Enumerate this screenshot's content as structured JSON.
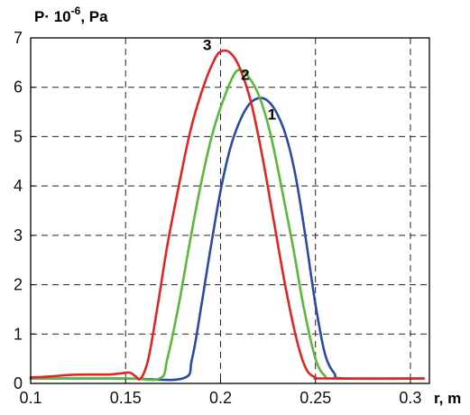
{
  "chart_data": {
    "type": "line",
    "ylabel_main": "P· 10",
    "ylabel_exp": "-6",
    "ylabel_unit": ", Pa",
    "xlabel": "r, m",
    "xlim": [
      0.1,
      0.31
    ],
    "ylim": [
      0,
      7
    ],
    "xticks": [
      "0.1",
      "0.15",
      "0.2",
      "0.25",
      "0.3"
    ],
    "xtick_values": [
      0.1,
      0.15,
      0.2,
      0.25,
      0.3
    ],
    "yticks": [
      "0",
      "1",
      "2",
      "3",
      "4",
      "5",
      "6",
      "7"
    ],
    "ytick_values": [
      0,
      1,
      2,
      3,
      4,
      5,
      6,
      7
    ],
    "grid": true,
    "series": [
      {
        "name": "1",
        "color": "#2b4aa6",
        "points": [
          [
            0.1,
            0.1
          ],
          [
            0.15,
            0.1
          ],
          [
            0.18,
            0.1
          ],
          [
            0.185,
            0.5
          ],
          [
            0.19,
            1.6
          ],
          [
            0.195,
            2.8
          ],
          [
            0.2,
            3.9
          ],
          [
            0.205,
            4.75
          ],
          [
            0.21,
            5.3
          ],
          [
            0.215,
            5.65
          ],
          [
            0.22,
            5.78
          ],
          [
            0.225,
            5.72
          ],
          [
            0.23,
            5.45
          ],
          [
            0.235,
            4.95
          ],
          [
            0.24,
            4.1
          ],
          [
            0.245,
            2.9
          ],
          [
            0.25,
            1.6
          ],
          [
            0.255,
            0.6
          ],
          [
            0.26,
            0.2
          ],
          [
            0.265,
            0.1
          ],
          [
            0.307,
            0.1
          ]
        ]
      },
      {
        "name": "2",
        "color": "#5ab936",
        "points": [
          [
            0.1,
            0.1
          ],
          [
            0.15,
            0.1
          ],
          [
            0.168,
            0.1
          ],
          [
            0.172,
            0.5
          ],
          [
            0.178,
            1.6
          ],
          [
            0.184,
            2.9
          ],
          [
            0.19,
            4.1
          ],
          [
            0.196,
            5.1
          ],
          [
            0.202,
            5.8
          ],
          [
            0.207,
            6.25
          ],
          [
            0.21,
            6.35
          ],
          [
            0.214,
            6.25
          ],
          [
            0.22,
            5.85
          ],
          [
            0.226,
            5.1
          ],
          [
            0.232,
            4.0
          ],
          [
            0.238,
            2.8
          ],
          [
            0.244,
            1.5
          ],
          [
            0.25,
            0.5
          ],
          [
            0.255,
            0.15
          ],
          [
            0.26,
            0.1
          ],
          [
            0.307,
            0.1
          ]
        ]
      },
      {
        "name": "3",
        "color": "#e32424",
        "points": [
          [
            0.1,
            0.12
          ],
          [
            0.11,
            0.14
          ],
          [
            0.12,
            0.17
          ],
          [
            0.13,
            0.18
          ],
          [
            0.14,
            0.18
          ],
          [
            0.147,
            0.2
          ],
          [
            0.152,
            0.22
          ],
          [
            0.155,
            0.15
          ],
          [
            0.158,
            0.1
          ],
          [
            0.162,
            0.5
          ],
          [
            0.167,
            1.6
          ],
          [
            0.172,
            2.8
          ],
          [
            0.178,
            4.0
          ],
          [
            0.184,
            5.1
          ],
          [
            0.19,
            5.9
          ],
          [
            0.196,
            6.5
          ],
          [
            0.2,
            6.72
          ],
          [
            0.205,
            6.7
          ],
          [
            0.21,
            6.4
          ],
          [
            0.216,
            5.7
          ],
          [
            0.222,
            4.6
          ],
          [
            0.228,
            3.3
          ],
          [
            0.234,
            2.0
          ],
          [
            0.24,
            0.9
          ],
          [
            0.245,
            0.3
          ],
          [
            0.25,
            0.12
          ],
          [
            0.255,
            0.1
          ],
          [
            0.307,
            0.1
          ]
        ]
      }
    ],
    "curve_labels": [
      {
        "text": "1",
        "x": 0.227,
        "y": 5.35
      },
      {
        "text": "2",
        "x": 0.213,
        "y": 6.15
      },
      {
        "text": "3",
        "x": 0.193,
        "y": 6.75
      }
    ]
  }
}
